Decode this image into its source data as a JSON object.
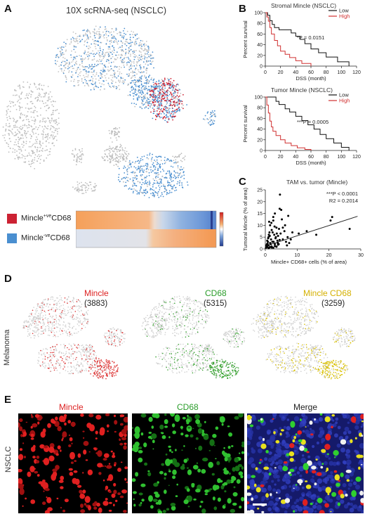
{
  "panels": {
    "A": {
      "letter": "A",
      "title": "10X scRNA-seq (NSCLC)",
      "legend": [
        {
          "label_main": "Mincle",
          "label_sup": "+ve",
          "label_tail": "CD68",
          "color": "#cc2233"
        },
        {
          "label_main": "Mincle",
          "label_sup": "-ve",
          "label_tail": "CD68",
          "color": "#4a8fd0"
        }
      ]
    },
    "B": {
      "letter": "B"
    },
    "C": {
      "letter": "C"
    },
    "D": {
      "letter": "D",
      "side_label": "Melanoma",
      "maps": [
        {
          "name": "Mincle",
          "count": "(3883)",
          "color": "#dd3333"
        },
        {
          "name": "CD68",
          "count": "(5315)",
          "color": "#33a02c"
        },
        {
          "name": "Mincle CD68",
          "count": "(3259)",
          "color": "#d9c000"
        }
      ]
    },
    "E": {
      "letter": "E",
      "side_label": "NSCLC",
      "columns": [
        {
          "name": "Mincle",
          "color": "#dd2222"
        },
        {
          "name": "CD68",
          "color": "#22aa22"
        },
        {
          "name": "Merge",
          "color": "#222222"
        }
      ]
    }
  },
  "chart_data": [
    {
      "type": "line",
      "title": "Stromal Mincle (NSCLC)",
      "xlabel": "DSS (month)",
      "ylabel": "Percent survival",
      "xlim": [
        0,
        120
      ],
      "ylim": [
        0,
        100
      ],
      "xticks": [
        0,
        20,
        40,
        60,
        80,
        100,
        120
      ],
      "yticks": [
        0,
        20,
        40,
        60,
        80,
        100
      ],
      "annotation": "*P = 0.0151",
      "series": [
        {
          "name": "Low",
          "color": "#111111",
          "x": [
            0,
            3,
            6,
            9,
            12,
            18,
            28,
            34,
            40,
            46,
            52,
            60,
            70,
            80,
            95,
            110
          ],
          "y": [
            100,
            95,
            85,
            78,
            72,
            68,
            68,
            62,
            56,
            50,
            42,
            32,
            25,
            17,
            8,
            0
          ]
        },
        {
          "name": "High",
          "color": "#d03030",
          "x": [
            0,
            2,
            4,
            6,
            8,
            12,
            16,
            20,
            26,
            32,
            40,
            48,
            60
          ],
          "y": [
            100,
            92,
            84,
            72,
            60,
            48,
            38,
            28,
            22,
            16,
            10,
            5,
            0
          ]
        }
      ]
    },
    {
      "type": "line",
      "title": "Tumor Mincle (NSCLC)",
      "xlabel": "DSS (month)",
      "ylabel": "Percent survival",
      "xlim": [
        0,
        120
      ],
      "ylim": [
        0,
        100
      ],
      "xticks": [
        0,
        20,
        40,
        60,
        80,
        100,
        120
      ],
      "yticks": [
        0,
        20,
        40,
        60,
        80,
        100
      ],
      "annotation": "***P = 0.0005",
      "series": [
        {
          "name": "Low",
          "color": "#111111",
          "x": [
            0,
            10,
            14,
            18,
            26,
            32,
            40,
            48,
            56,
            64,
            72,
            80,
            90,
            100,
            110
          ],
          "y": [
            100,
            100,
            92,
            86,
            78,
            72,
            64,
            56,
            48,
            40,
            30,
            22,
            14,
            6,
            0
          ]
        },
        {
          "name": "High",
          "color": "#d03030",
          "x": [
            0,
            2,
            4,
            6,
            8,
            10,
            14,
            20,
            26,
            34,
            42,
            52,
            60
          ],
          "y": [
            100,
            85,
            70,
            55,
            44,
            36,
            28,
            20,
            14,
            9,
            5,
            2,
            0
          ]
        }
      ]
    },
    {
      "type": "scatter",
      "title": "TAM vs. tumor (Mincle)",
      "xlabel": "Mincle+ CD68+ cells (% of area)",
      "ylabel": "Tumoral Mincle (% of area)",
      "xlim": [
        0,
        30
      ],
      "ylim": [
        0,
        25
      ],
      "xticks": [
        0,
        10,
        20,
        30
      ],
      "yticks": [
        0,
        5,
        10,
        15,
        20,
        25
      ],
      "annotations": [
        "***P < 0.0001",
        "R2 = 0.2014"
      ],
      "trendline": {
        "x": [
          0,
          29
        ],
        "y": [
          1.2,
          13.8
        ]
      },
      "points": {
        "x": [
          0.2,
          0.4,
          0.5,
          0.6,
          0.8,
          1.0,
          1.0,
          1.2,
          1.3,
          1.5,
          1.5,
          1.8,
          2.0,
          2.0,
          2.2,
          2.5,
          2.5,
          2.8,
          3.0,
          3.0,
          3.2,
          3.5,
          3.5,
          3.8,
          4.0,
          4.2,
          4.5,
          4.8,
          5.0,
          5.5,
          6.0,
          6.5,
          7.0,
          7.5,
          8.0,
          0.3,
          0.6,
          0.9,
          1.1,
          1.4,
          1.7,
          1.9,
          2.3,
          2.6,
          2.9,
          3.3,
          3.6,
          3.9,
          4.3,
          4.6,
          5.2,
          6.2,
          7.2,
          1.0,
          1.5,
          2.0,
          3.0,
          4.0,
          2.5,
          3.5,
          8.5,
          10.5,
          13.0,
          16.0,
          20.5,
          21.0,
          26.5,
          4.5,
          5.5,
          6.8,
          1.2,
          0.7
        ],
        "y": [
          0.5,
          1.0,
          2.0,
          0.8,
          3.0,
          1.5,
          5.0,
          0.5,
          7.0,
          2.5,
          10.0,
          4.0,
          1.0,
          8.0,
          3.0,
          0.5,
          12.0,
          6.0,
          2.0,
          15.0,
          4.5,
          1.0,
          9.0,
          3.5,
          5.5,
          2.0,
          17.0,
          6.5,
          16.5,
          4.0,
          7.5,
          3.0,
          5.0,
          2.5,
          4.0,
          1.5,
          3.5,
          4.5,
          6.0,
          5.5,
          2.0,
          11.0,
          7.0,
          3.0,
          9.5,
          5.0,
          6.5,
          2.5,
          8.5,
          23.0,
          12.5,
          10.0,
          14.0,
          0.3,
          0.8,
          0.6,
          1.2,
          1.8,
          13.5,
          0.9,
          7.0,
          6.5,
          7.5,
          6.0,
          12.0,
          13.5,
          8.5,
          3.8,
          9.0,
          1.5,
          11.5,
          2.2
        ]
      }
    }
  ]
}
